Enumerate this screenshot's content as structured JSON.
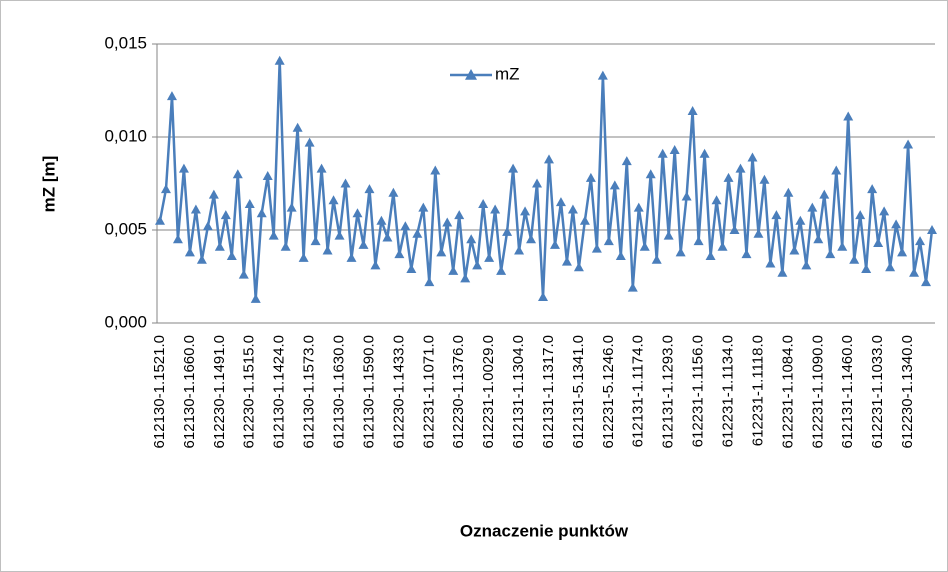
{
  "chart_data": {
    "type": "line",
    "y_label": "mZ [m]",
    "x_label": "Oznaczenie punktów",
    "ylim": [
      0,
      0.015
    ],
    "yticks": [
      {
        "value": 0,
        "label": "0,000"
      },
      {
        "value": 0.005,
        "label": "0,005"
      },
      {
        "value": 0.01,
        "label": "0,010"
      },
      {
        "value": 0.015,
        "label": "0,015"
      }
    ],
    "grid": true,
    "legend": "top",
    "categories": [
      "612130-1.1521.0",
      null,
      null,
      null,
      null,
      "612130-1.1660.0",
      null,
      null,
      null,
      null,
      "612230-1.1491.0",
      null,
      null,
      null,
      null,
      "612230-1.1515.0",
      null,
      null,
      null,
      null,
      "612130-1.1424.0",
      null,
      null,
      null,
      null,
      "612130-1.1573.0",
      null,
      null,
      null,
      null,
      "612130-1.1630.0",
      null,
      null,
      null,
      null,
      "612130-1.1590.0",
      null,
      null,
      null,
      null,
      "612230-1.1433.0",
      null,
      null,
      null,
      null,
      "612231-1.1071.0",
      null,
      null,
      null,
      null,
      "612230-1.1376.0",
      null,
      null,
      null,
      null,
      "612231-1.0029.0",
      null,
      null,
      null,
      null,
      "612131-1.1304.0",
      null,
      null,
      null,
      null,
      "612131-1.1317.0",
      null,
      null,
      null,
      null,
      "612131-5.1341.0",
      null,
      null,
      null,
      null,
      "612231-5.1246.0",
      null,
      null,
      null,
      null,
      "612131-1.1174.0",
      null,
      null,
      null,
      null,
      "612131-1.1293.0",
      null,
      null,
      null,
      null,
      "612231-1.1156.0",
      null,
      null,
      null,
      null,
      "612231-1.1134.0",
      null,
      null,
      null,
      null,
      "612231-1.1118.0",
      null,
      null,
      null,
      null,
      "612231-1.1084.0",
      null,
      null,
      null,
      null,
      "612231-1.1090.0",
      null,
      null,
      null,
      null,
      "612131-1.1460.0",
      null,
      null,
      null,
      null,
      "612231-1.1033.0",
      null,
      null,
      null,
      null,
      "612230-1.1340.0",
      null,
      null,
      null,
      null
    ],
    "series": [
      {
        "name": "mZ",
        "color": "#4a7ebb",
        "values": [
          0.0055,
          0.0072,
          0.0122,
          0.0045,
          0.0083,
          0.0038,
          0.0061,
          0.0034,
          0.0052,
          0.0069,
          0.0041,
          0.0058,
          0.0036,
          0.008,
          0.0026,
          0.0064,
          0.0013,
          0.0059,
          0.0079,
          0.0047,
          0.0141,
          0.0041,
          0.0062,
          0.0105,
          0.0035,
          0.0097,
          0.0044,
          0.0083,
          0.0039,
          0.0066,
          0.0047,
          0.0075,
          0.0035,
          0.0059,
          0.0042,
          0.0072,
          0.0031,
          0.0055,
          0.0046,
          0.007,
          0.0037,
          0.0052,
          0.0029,
          0.0048,
          0.0062,
          0.0022,
          0.0082,
          0.0038,
          0.0054,
          0.0028,
          0.0058,
          0.0024,
          0.0045,
          0.0031,
          0.0064,
          0.0035,
          0.0061,
          0.0028,
          0.0049,
          0.0083,
          0.0039,
          0.006,
          0.0045,
          0.0075,
          0.0014,
          0.0088,
          0.0042,
          0.0065,
          0.0033,
          0.0061,
          0.003,
          0.0055,
          0.0078,
          0.004,
          0.0133,
          0.0044,
          0.0074,
          0.0036,
          0.0087,
          0.0019,
          0.0062,
          0.0041,
          0.008,
          0.0034,
          0.0091,
          0.0047,
          0.0093,
          0.0038,
          0.0068,
          0.0114,
          0.0044,
          0.0091,
          0.0036,
          0.0066,
          0.0041,
          0.0078,
          0.005,
          0.0083,
          0.0037,
          0.0089,
          0.0048,
          0.0077,
          0.0032,
          0.0058,
          0.0027,
          0.007,
          0.0039,
          0.0055,
          0.0031,
          0.0062,
          0.0045,
          0.0069,
          0.0037,
          0.0082,
          0.0041,
          0.0111,
          0.0034,
          0.0058,
          0.0029,
          0.0072,
          0.0043,
          0.006,
          0.003,
          0.0053,
          0.0038,
          0.0096,
          0.0027,
          0.0044,
          0.0022,
          0.005
        ]
      }
    ]
  }
}
